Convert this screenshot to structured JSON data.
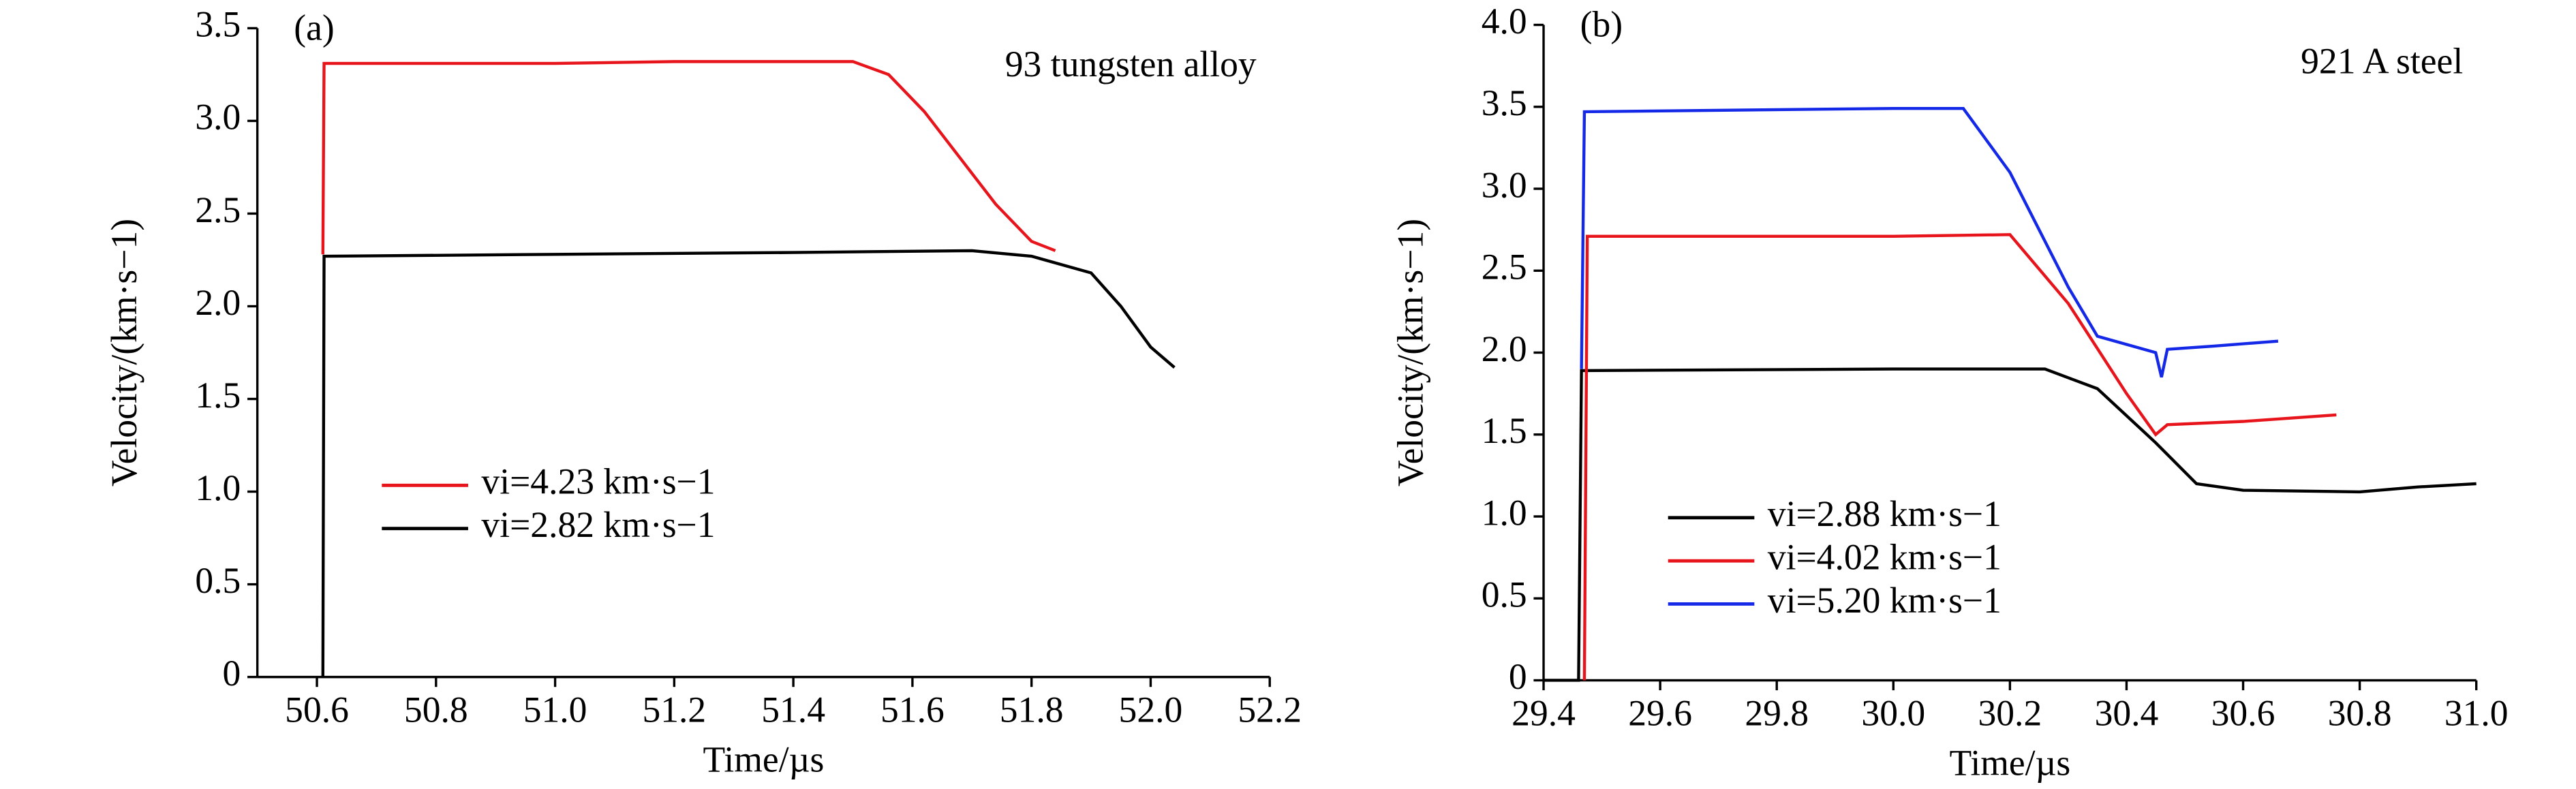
{
  "chart_data": [
    {
      "type": "line",
      "panel_label": "(a)",
      "annotation": "93 tungsten alloy",
      "xlabel": "Time/µs",
      "ylabel": "Velocity/(km·s−1)",
      "xlim": [
        50.5,
        52.2
      ],
      "xticks": [
        50.6,
        50.8,
        {
          "value": 51,
          "label": "51.0"
        },
        51.2,
        51.4,
        51.6,
        51.8,
        {
          "value": 52,
          "label": "52.0"
        },
        52.2
      ],
      "ylim": [
        0,
        3.5
      ],
      "yticks": [
        0,
        0.5,
        {
          "value": 1,
          "label": "1.0"
        },
        1.5,
        {
          "value": 2,
          "label": "2.0"
        },
        2.5,
        {
          "value": 3,
          "label": "3.0"
        },
        3.5
      ],
      "legend_position": "center left",
      "series": [
        {
          "name": "vi=4.23 km·s−1",
          "color": "#e8141c",
          "x": [
            50.61,
            50.612,
            51.0,
            51.2,
            51.5,
            51.56,
            51.62,
            51.68,
            51.74,
            51.8,
            51.84
          ],
          "values": [
            2.28,
            3.31,
            3.31,
            3.32,
            3.32,
            3.25,
            3.05,
            2.8,
            2.55,
            2.35,
            2.3
          ]
        },
        {
          "name": "vi=2.82 km·s−1",
          "color": "#000000",
          "x": [
            50.61,
            50.612,
            51.0,
            51.4,
            51.7,
            51.8,
            51.9,
            51.95,
            52.0,
            52.04
          ],
          "values": [
            0,
            2.27,
            2.28,
            2.29,
            2.3,
            2.27,
            2.18,
            2.0,
            1.78,
            1.67
          ]
        }
      ]
    },
    {
      "type": "line",
      "panel_label": "(b)",
      "annotation": "921 A steel",
      "xlabel": "Time/µs",
      "ylabel": "Velocity/(km·s−1)",
      "xlim": [
        29.4,
        31.0
      ],
      "xticks": [
        29.4,
        29.6,
        29.8,
        {
          "value": 30,
          "label": "30.0"
        },
        30.2,
        30.4,
        30.6,
        30.8,
        {
          "value": 31,
          "label": "31.0"
        }
      ],
      "ylim": [
        0,
        4
      ],
      "yticks": [
        0,
        0.5,
        {
          "value": 1,
          "label": "1.0"
        },
        1.5,
        {
          "value": 2,
          "label": "2.0"
        },
        2.5,
        {
          "value": 3,
          "label": "3.0"
        },
        3.5,
        {
          "value": 4,
          "label": "4.0"
        }
      ],
      "legend_position": "lower left",
      "series": [
        {
          "name": "vi=2.88 km·s−1",
          "color": "#000000",
          "x": [
            29.4,
            29.46,
            29.465,
            30.0,
            30.26,
            30.35,
            30.45,
            30.52,
            30.6,
            30.8,
            30.9,
            31.0
          ],
          "values": [
            0,
            0,
            1.89,
            1.9,
            1.9,
            1.78,
            1.45,
            1.2,
            1.16,
            1.15,
            1.18,
            1.2
          ]
        },
        {
          "name": "vi=4.02 km·s−1",
          "color": "#e8141c",
          "x": [
            29.47,
            29.475,
            30.0,
            30.2,
            30.3,
            30.4,
            30.45,
            30.47,
            30.6,
            30.76
          ],
          "values": [
            0,
            2.71,
            2.71,
            2.72,
            2.3,
            1.75,
            1.5,
            1.56,
            1.58,
            1.62
          ]
        },
        {
          "name": "vi=5.20 km·s−1",
          "color": "#1428e8",
          "x": [
            29.465,
            29.47,
            30.0,
            30.12,
            30.2,
            30.3,
            30.35,
            30.45,
            30.46,
            30.47,
            30.55,
            30.66
          ],
          "values": [
            1.9,
            3.47,
            3.49,
            3.49,
            3.1,
            2.4,
            2.1,
            2.0,
            1.85,
            2.02,
            2.04,
            2.07
          ]
        }
      ]
    }
  ]
}
